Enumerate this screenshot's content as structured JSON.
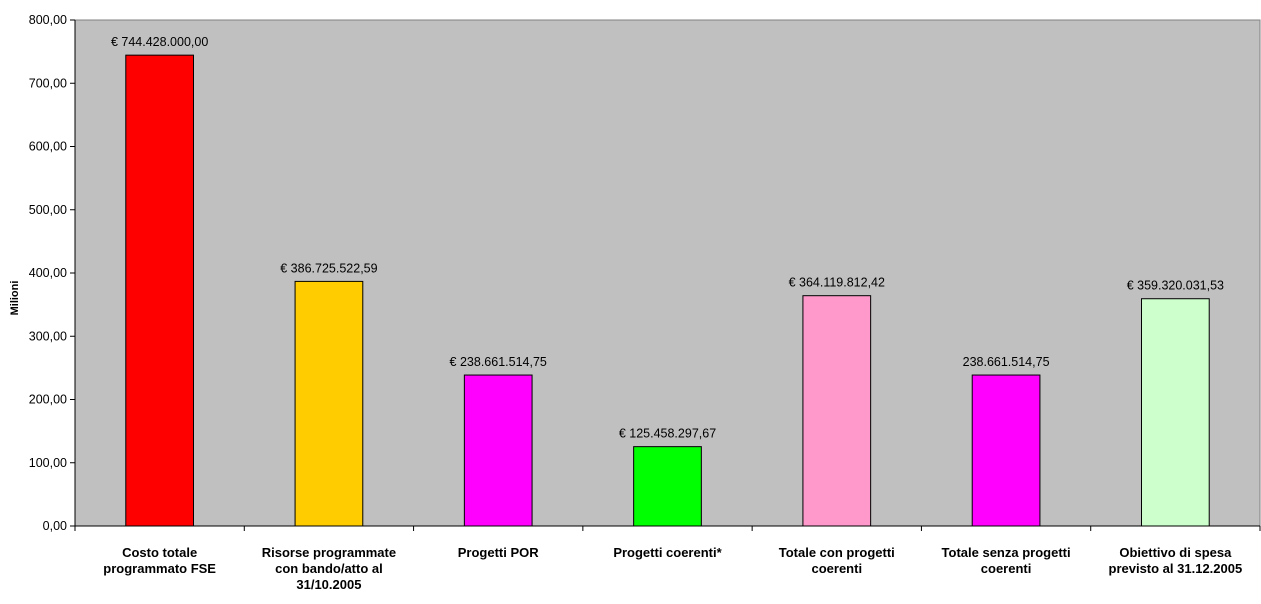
{
  "chart_data": {
    "type": "bar",
    "ylabel": "Milioni",
    "ylim": [
      0,
      800
    ],
    "yticks": [
      "0,00",
      "100,00",
      "200,00",
      "300,00",
      "400,00",
      "500,00",
      "600,00",
      "700,00",
      "800,00"
    ],
    "grid": false,
    "plot_background": "#c0c0c0",
    "categories": [
      [
        "Costo totale",
        "programmato FSE"
      ],
      [
        "Risorse programmate",
        "con bando/atto al",
        "31/10.2005"
      ],
      [
        "Progetti POR"
      ],
      [
        "Progetti coerenti*"
      ],
      [
        "Totale con progetti",
        "coerenti"
      ],
      [
        "Totale senza progetti",
        "coerenti"
      ],
      [
        "Obiettivo di spesa",
        "previsto al 31.12.2005"
      ]
    ],
    "values": [
      744.428,
      386.72552259,
      238.66151475,
      125.45829767,
      364.11981242,
      238.66151475,
      359.32003153
    ],
    "data_labels": [
      "€ 744.428.000,00",
      "€ 386.725.522,59",
      "€ 238.661.514,75",
      "€ 125.458.297,67",
      "€ 364.119.812,42",
      "238.661.514,75",
      "€ 359.320.031,53"
    ],
    "colors": [
      "#ff0000",
      "#ffcc00",
      "#ff00ff",
      "#00ff00",
      "#ff99cc",
      "#ff00ff",
      "#ccffcc"
    ]
  }
}
